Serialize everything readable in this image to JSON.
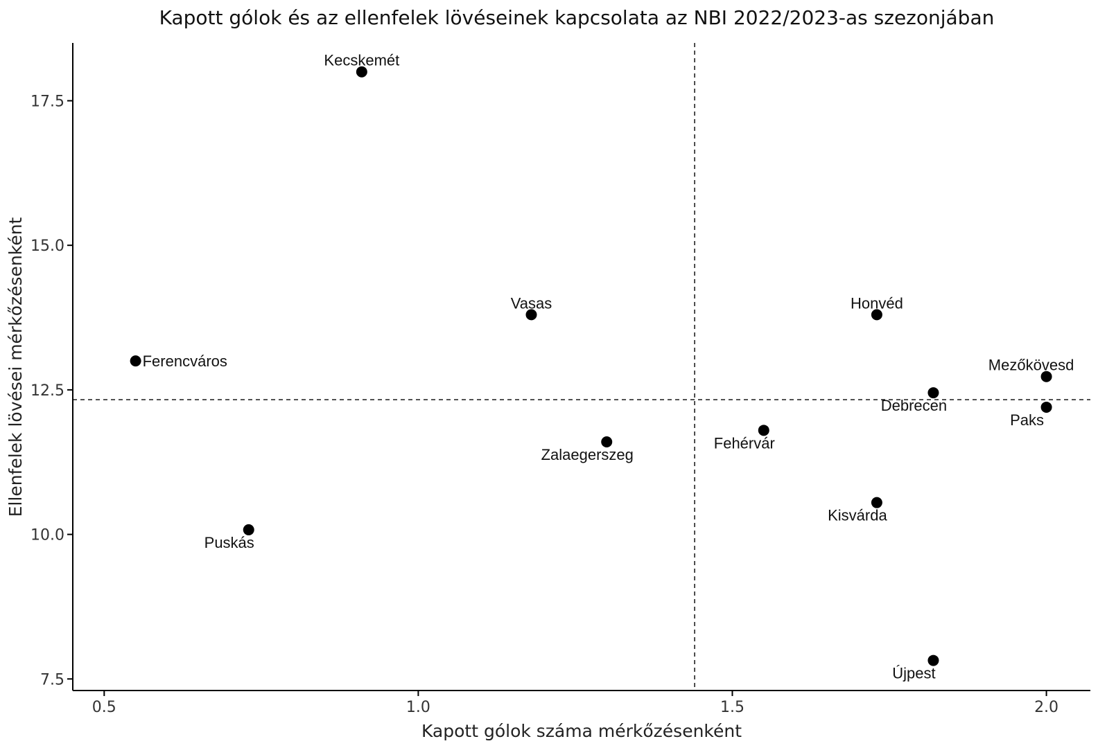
{
  "chart_data": {
    "type": "scatter",
    "title": "Kapott gólok és az ellenfelek lövéseinek kapcsolata az NBI 2022/2023-as szezonjában",
    "xlabel": "Kapott gólok száma mérkőzésenként",
    "ylabel": "Ellenfelek lövései mérkőzésenként",
    "xlim": [
      0.45,
      2.07
    ],
    "ylim": [
      7.3,
      18.5
    ],
    "xticks": [
      0.5,
      1.0,
      1.5,
      2.0
    ],
    "xtick_labels": [
      "0.5",
      "1.0",
      "1.5",
      "2.0"
    ],
    "yticks": [
      7.5,
      10.0,
      12.5,
      15.0,
      17.5
    ],
    "ytick_labels": [
      "7.5",
      "10.0",
      "12.5",
      "15.0",
      "17.5"
    ],
    "vline_x": 1.44,
    "hline_y": 12.33,
    "grid": false,
    "points": [
      {
        "label": "Kecskemét",
        "x": 0.91,
        "y": 18.0,
        "label_pos": "above"
      },
      {
        "label": "Vasas",
        "x": 1.18,
        "y": 13.8,
        "label_pos": "above"
      },
      {
        "label": "Honvéd",
        "x": 1.73,
        "y": 13.8,
        "label_pos": "above"
      },
      {
        "label": "Ferencváros",
        "x": 0.55,
        "y": 13.0,
        "label_pos": "right"
      },
      {
        "label": "Mezőkövesd",
        "x": 2.0,
        "y": 12.73,
        "label_pos": "above-left"
      },
      {
        "label": "Debrecen",
        "x": 1.82,
        "y": 12.45,
        "label_pos": "below-left"
      },
      {
        "label": "Paks",
        "x": 2.0,
        "y": 12.2,
        "label_pos": "below-left"
      },
      {
        "label": "Fehérvár",
        "x": 1.55,
        "y": 11.8,
        "label_pos": "below-left"
      },
      {
        "label": "Zalaegerszeg",
        "x": 1.3,
        "y": 11.6,
        "label_pos": "below-left"
      },
      {
        "label": "Kisvárda",
        "x": 1.73,
        "y": 10.55,
        "label_pos": "below-left"
      },
      {
        "label": "Puskás",
        "x": 0.73,
        "y": 10.08,
        "label_pos": "below-left"
      },
      {
        "label": "Újpest",
        "x": 1.82,
        "y": 7.82,
        "label_pos": "below-left"
      }
    ]
  }
}
